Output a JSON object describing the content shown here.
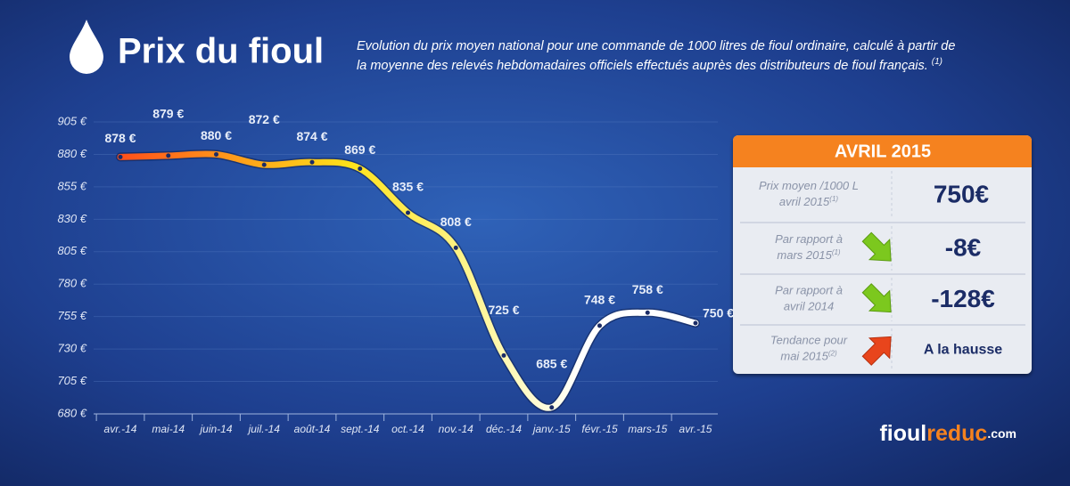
{
  "header": {
    "title": "Prix du fioul",
    "subtitle": [
      "Evolution du prix moyen national pour une commande de 1000 litres de fioul ordinaire, calculé à partir de",
      "la moyenne des relevés hebdomadaires officiels effectués auprès des distributeurs de fioul français."
    ],
    "subtitle_note": "(1)"
  },
  "chart_data": {
    "type": "line",
    "categories": [
      "avr.-14",
      "mai-14",
      "juin-14",
      "juil.-14",
      "août-14",
      "sept.-14",
      "oct.-14",
      "nov.-14",
      "déc.-14",
      "janv.-15",
      "févr.-15",
      "mars-15",
      "avr.-15"
    ],
    "values": [
      878,
      879,
      880,
      872,
      874,
      869,
      835,
      808,
      725,
      685,
      748,
      758,
      750
    ],
    "value_labels": [
      "878 €",
      "879 €",
      "880 €",
      "872 €",
      "874 €",
      "869 €",
      "835 €",
      "808 €",
      "725 €",
      "685 €",
      "748 €",
      "758 €",
      "750 €"
    ],
    "ylim": [
      680,
      905
    ],
    "yticks": [
      {
        "value": 680,
        "label": "680 €"
      },
      {
        "value": 705,
        "label": "705 €"
      },
      {
        "value": 730,
        "label": "730 €"
      },
      {
        "value": 755,
        "label": "755 €"
      },
      {
        "value": 780,
        "label": "780 €"
      },
      {
        "value": 805,
        "label": "805 €"
      },
      {
        "value": 830,
        "label": "830 €"
      },
      {
        "value": 855,
        "label": "855 €"
      },
      {
        "value": 880,
        "label": "880 €"
      },
      {
        "value": 905,
        "label": "905 €"
      }
    ],
    "grid": true,
    "line_gradient": [
      "#ff4f1a",
      "#ff9d1a",
      "#ffe21a",
      "#fff48a",
      "#ffffff",
      "#ffffff"
    ],
    "marker_color": "#1b2c66"
  },
  "panel": {
    "title": "AVRIL 2015",
    "rows": [
      {
        "label": [
          "Prix moyen /1000 L",
          "avril 2015"
        ],
        "note": "(1)",
        "value": "750€"
      },
      {
        "label": [
          "Par rapport à",
          "mars 2015"
        ],
        "note": "(1)",
        "value": "-8€",
        "trend": "down"
      },
      {
        "label": [
          "Par rapport à",
          "avril 2014"
        ],
        "value": "-128€",
        "trend": "down"
      },
      {
        "label": [
          "Tendance pour",
          "mai 2015"
        ],
        "note": "(2)",
        "value": "A la hausse",
        "trend": "up"
      }
    ]
  },
  "logo": {
    "parts": [
      "fioul",
      "reduc",
      ".com"
    ]
  }
}
